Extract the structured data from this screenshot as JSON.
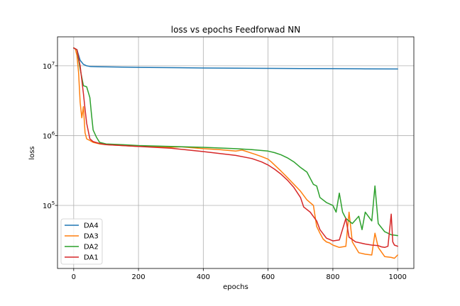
{
  "chart_data": {
    "type": "line",
    "title": "loss vs epochs Feedforwad NN",
    "xlabel": "epochs",
    "ylabel": "loss",
    "xlim": [
      -50,
      1050
    ],
    "ylim": [
      12500,
      26000000
    ],
    "yscale": "log",
    "grid": true,
    "legend_position": "lower-left",
    "x_ticks": [
      0,
      200,
      400,
      600,
      800,
      1000
    ],
    "x_tick_labels": [
      "0",
      "200",
      "400",
      "600",
      "800",
      "1000"
    ],
    "y_ticks": [
      100000,
      1000000,
      10000000
    ],
    "y_tick_labels": [
      "10",
      "10",
      "10"
    ],
    "y_tick_exponents": [
      "5",
      "6",
      "7"
    ],
    "series": [
      {
        "name": "DA4",
        "color": "#1f77b4",
        "points": [
          [
            0,
            18000000
          ],
          [
            10,
            17000000
          ],
          [
            20,
            12000000
          ],
          [
            30,
            10500000
          ],
          [
            40,
            10000000
          ],
          [
            50,
            9800000
          ],
          [
            75,
            9700000
          ],
          [
            100,
            9650000
          ],
          [
            200,
            9500000
          ],
          [
            300,
            9400000
          ],
          [
            400,
            9300000
          ],
          [
            500,
            9250000
          ],
          [
            600,
            9200000
          ],
          [
            700,
            9150000
          ],
          [
            800,
            9100000
          ],
          [
            900,
            9050000
          ],
          [
            1000,
            9000000
          ]
        ]
      },
      {
        "name": "DA3",
        "color": "#ff7f0e",
        "points": [
          [
            0,
            18000000
          ],
          [
            5,
            17500000
          ],
          [
            10,
            14000000
          ],
          [
            15,
            8000000
          ],
          [
            20,
            3000000
          ],
          [
            25,
            1800000
          ],
          [
            30,
            2600000
          ],
          [
            35,
            1100000
          ],
          [
            40,
            900000
          ],
          [
            50,
            850000
          ],
          [
            60,
            800000
          ],
          [
            80,
            760000
          ],
          [
            100,
            740000
          ],
          [
            200,
            700000
          ],
          [
            240,
            700000
          ],
          [
            300,
            680000
          ],
          [
            330,
            690000
          ],
          [
            400,
            650000
          ],
          [
            450,
            630000
          ],
          [
            500,
            600000
          ],
          [
            520,
            620000
          ],
          [
            560,
            540000
          ],
          [
            580,
            500000
          ],
          [
            600,
            460000
          ],
          [
            610,
            420000
          ],
          [
            620,
            380000
          ],
          [
            640,
            310000
          ],
          [
            660,
            250000
          ],
          [
            680,
            200000
          ],
          [
            700,
            160000
          ],
          [
            720,
            120000
          ],
          [
            740,
            100000
          ],
          [
            750,
            50000
          ],
          [
            760,
            40000
          ],
          [
            770,
            33000
          ],
          [
            780,
            30000
          ],
          [
            790,
            29000
          ],
          [
            800,
            27000
          ],
          [
            820,
            25000
          ],
          [
            840,
            26000
          ],
          [
            850,
            80000
          ],
          [
            860,
            30000
          ],
          [
            880,
            21000
          ],
          [
            900,
            20000
          ],
          [
            920,
            19500
          ],
          [
            930,
            40000
          ],
          [
            940,
            25000
          ],
          [
            960,
            18500
          ],
          [
            980,
            18000
          ],
          [
            990,
            17500
          ],
          [
            1000,
            19500
          ]
        ]
      },
      {
        "name": "DA2",
        "color": "#2ca02c",
        "points": [
          [
            0,
            18000000
          ],
          [
            10,
            17000000
          ],
          [
            20,
            9000000
          ],
          [
            30,
            5200000
          ],
          [
            40,
            5000000
          ],
          [
            50,
            3500000
          ],
          [
            55,
            2000000
          ],
          [
            60,
            1200000
          ],
          [
            70,
            950000
          ],
          [
            80,
            800000
          ],
          [
            100,
            760000
          ],
          [
            150,
            740000
          ],
          [
            200,
            720000
          ],
          [
            300,
            700000
          ],
          [
            400,
            680000
          ],
          [
            500,
            650000
          ],
          [
            550,
            630000
          ],
          [
            600,
            600000
          ],
          [
            620,
            570000
          ],
          [
            640,
            530000
          ],
          [
            660,
            480000
          ],
          [
            680,
            420000
          ],
          [
            700,
            350000
          ],
          [
            720,
            300000
          ],
          [
            740,
            200000
          ],
          [
            750,
            190000
          ],
          [
            760,
            130000
          ],
          [
            780,
            110000
          ],
          [
            800,
            100000
          ],
          [
            810,
            80000
          ],
          [
            820,
            150000
          ],
          [
            830,
            80000
          ],
          [
            840,
            65000
          ],
          [
            860,
            55000
          ],
          [
            880,
            70000
          ],
          [
            890,
            45000
          ],
          [
            900,
            80000
          ],
          [
            920,
            60000
          ],
          [
            930,
            190000
          ],
          [
            940,
            55000
          ],
          [
            960,
            42000
          ],
          [
            980,
            38000
          ],
          [
            1000,
            37000
          ]
        ]
      },
      {
        "name": "DA1",
        "color": "#d62728",
        "points": [
          [
            0,
            18000000
          ],
          [
            10,
            17000000
          ],
          [
            20,
            10000000
          ],
          [
            30,
            4000000
          ],
          [
            35,
            2400000
          ],
          [
            40,
            1500000
          ],
          [
            50,
            900000
          ],
          [
            60,
            820000
          ],
          [
            80,
            770000
          ],
          [
            100,
            740000
          ],
          [
            200,
            700000
          ],
          [
            300,
            660000
          ],
          [
            400,
            590000
          ],
          [
            500,
            520000
          ],
          [
            550,
            470000
          ],
          [
            580,
            420000
          ],
          [
            600,
            380000
          ],
          [
            620,
            330000
          ],
          [
            640,
            280000
          ],
          [
            660,
            230000
          ],
          [
            680,
            180000
          ],
          [
            700,
            130000
          ],
          [
            710,
            95000
          ],
          [
            730,
            80000
          ],
          [
            750,
            60000
          ],
          [
            760,
            45000
          ],
          [
            780,
            34000
          ],
          [
            800,
            31000
          ],
          [
            820,
            32000
          ],
          [
            840,
            65000
          ],
          [
            850,
            35000
          ],
          [
            870,
            30000
          ],
          [
            900,
            28000
          ],
          [
            920,
            27000
          ],
          [
            940,
            26500
          ],
          [
            950,
            25500
          ],
          [
            960,
            25000
          ],
          [
            970,
            26000
          ],
          [
            980,
            75000
          ],
          [
            985,
            30000
          ],
          [
            990,
            27000
          ],
          [
            1000,
            26000
          ]
        ]
      }
    ]
  }
}
